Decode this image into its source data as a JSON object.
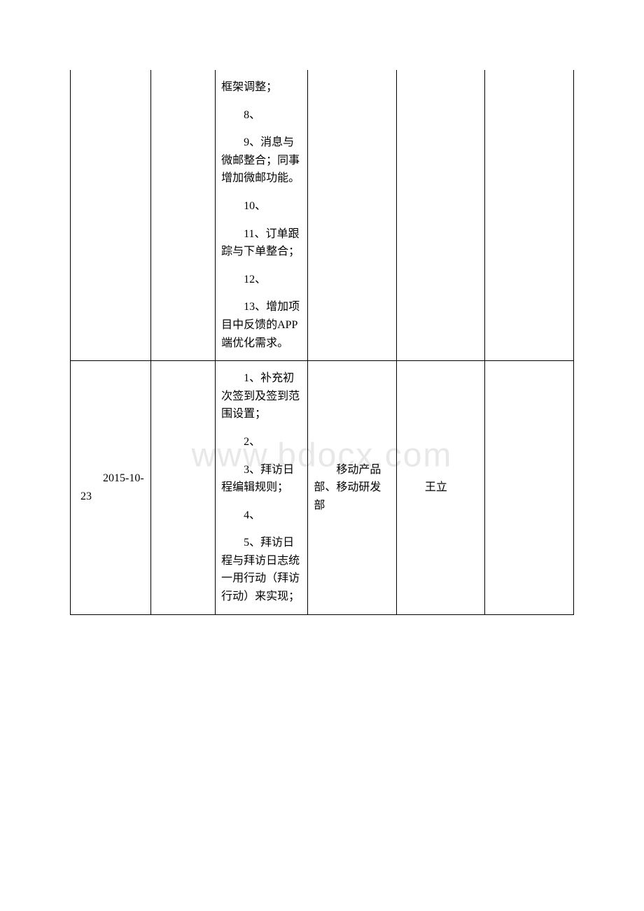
{
  "watermark": "www.bdocx.com",
  "table": {
    "rows": [
      {
        "col1": "",
        "col2": "",
        "col3_items": [
          "框架调整；",
          "8、",
          "9、消息与微邮整合；同事增加微邮功能。",
          "10、",
          "11、订单跟踪与下单整合；",
          "12、",
          "13、增加项目中反馈的APP端优化需求。"
        ],
        "col4": "",
        "col5": "",
        "col6": "",
        "continues_from_above": true
      },
      {
        "col1": "2015-10-23",
        "col2": "",
        "col3_items": [
          "1、补充初次签到及签到范围设置；",
          "2、",
          "3、拜访日程编辑规则；",
          "4、",
          "5、拜访日程与拜访日志统一用行动（拜访行动）来实现；"
        ],
        "col4": "移动产品部、移动研发部",
        "col5": "王立",
        "col6": "",
        "continues_from_above": false
      }
    ]
  }
}
